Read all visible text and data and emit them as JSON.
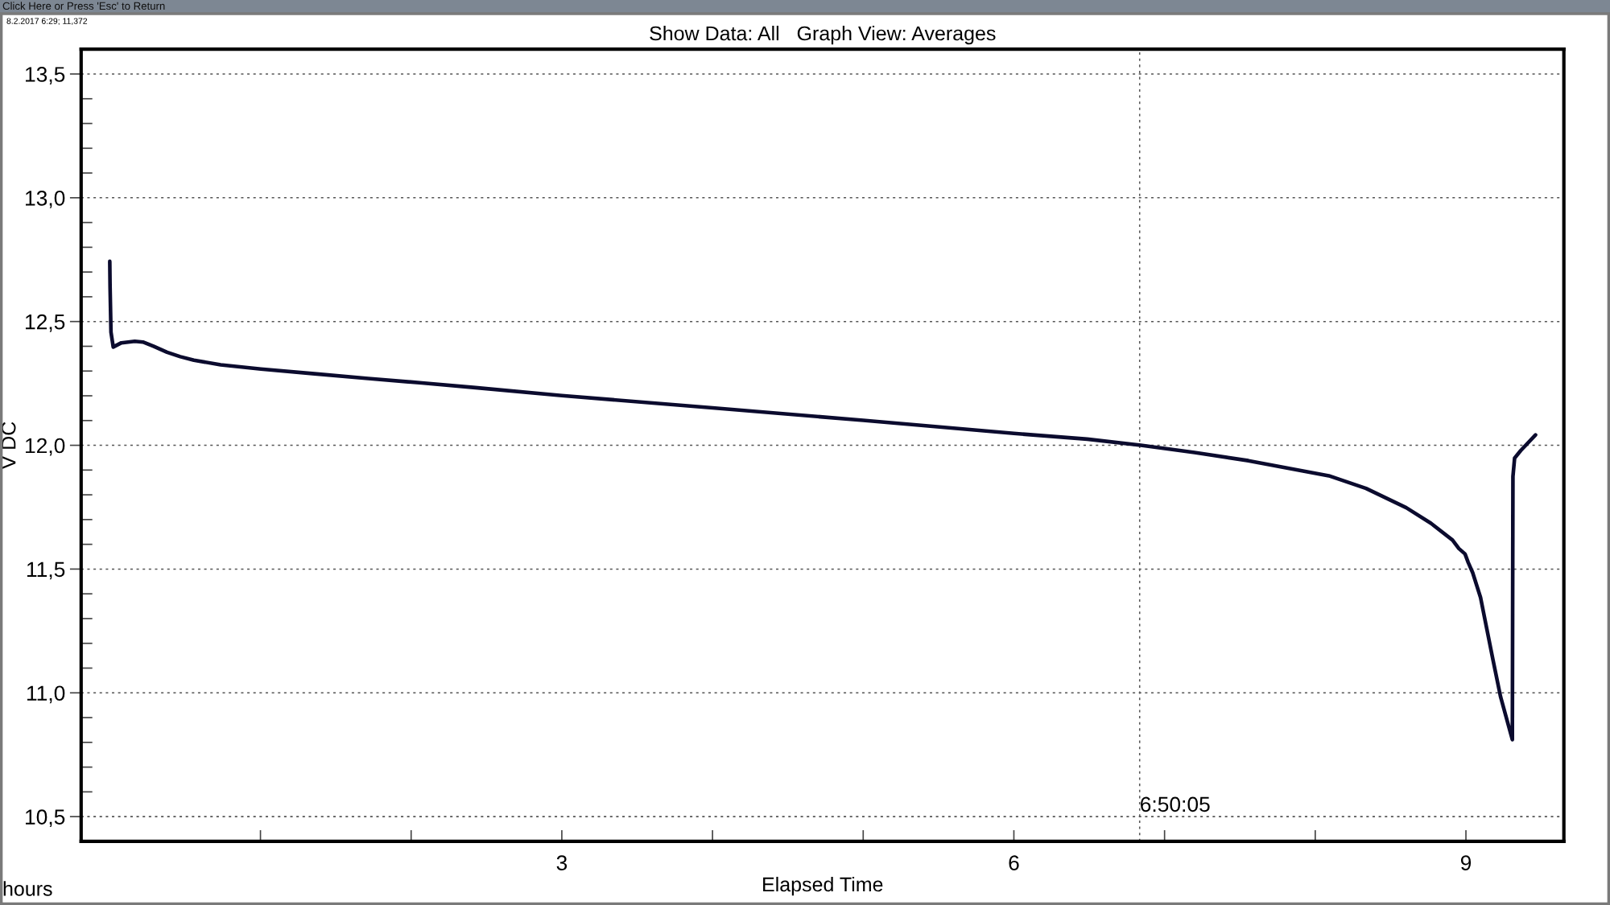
{
  "chart_data": {
    "type": "line",
    "title": "Show Data: All   Graph View: Averages",
    "xlabel": "Elapsed Time",
    "ylabel": "V DC",
    "annotations": [
      "Click Here or Press 'Esc' to Return",
      "8.2.2017 6:29; 11,372",
      "hours",
      {
        "text": "6:50:05",
        "x": 6.834722,
        "y": 10.52
      }
    ],
    "x": [
      0.0,
      0.002,
      0.008,
      0.023,
      0.077,
      0.166,
      0.22,
      0.29,
      0.38,
      0.468,
      0.558,
      0.736,
      1.003,
      1.359,
      1.715,
      2.071,
      2.427,
      3.0,
      4.0,
      5.0,
      6.0,
      6.487,
      6.843,
      7.199,
      7.556,
      7.912,
      8.09,
      8.337,
      8.604,
      8.768,
      8.911,
      8.953,
      8.994,
      9.015,
      9.045,
      9.097,
      9.138,
      9.179,
      9.23,
      9.308,
      9.312,
      9.323,
      9.364,
      9.462
    ],
    "series": [
      {
        "color": "#0b0b2e",
        "values": [
          12.743,
          12.64,
          12.457,
          12.397,
          12.414,
          12.42,
          12.417,
          12.4,
          12.376,
          12.358,
          12.344,
          12.325,
          12.308,
          12.289,
          12.27,
          12.252,
          12.233,
          12.201,
          12.151,
          12.101,
          12.048,
          12.025,
          12.0,
          11.971,
          11.938,
          11.897,
          11.877,
          11.826,
          11.748,
          11.685,
          11.617,
          11.583,
          11.561,
          11.527,
          11.485,
          11.385,
          11.26,
          11.135,
          10.984,
          10.811,
          11.874,
          11.948,
          11.979,
          12.042
        ]
      }
    ],
    "xlim": [
      -0.19,
      9.65
    ],
    "ylim": [
      10.4,
      13.6
    ],
    "xticks": [
      {
        "value": 1,
        "label": null
      },
      {
        "value": 2,
        "label": null
      },
      3,
      {
        "value": 4,
        "label": null
      },
      {
        "value": 5,
        "label": null
      },
      6,
      {
        "value": 7,
        "label": null
      },
      {
        "value": 8,
        "label": null
      },
      9
    ],
    "yticks": [
      {
        "value": 10.5,
        "label": "10,5"
      },
      {
        "value": 10.6,
        "label": null
      },
      {
        "value": 10.7,
        "label": null
      },
      {
        "value": 10.8,
        "label": null
      },
      {
        "value": 10.9,
        "label": null
      },
      {
        "value": 11.0,
        "label": "11,0"
      },
      {
        "value": 11.1,
        "label": null
      },
      {
        "value": 11.2,
        "label": null
      },
      {
        "value": 11.3,
        "label": null
      },
      {
        "value": 11.4,
        "label": null
      },
      {
        "value": 11.5,
        "label": "11,5"
      },
      {
        "value": 11.6,
        "label": null
      },
      {
        "value": 11.7,
        "label": null
      },
      {
        "value": 11.8,
        "label": null
      },
      {
        "value": 11.9,
        "label": null
      },
      {
        "value": 12.0,
        "label": "12,0"
      },
      {
        "value": 12.1,
        "label": null
      },
      {
        "value": 12.2,
        "label": null
      },
      {
        "value": 12.3,
        "label": null
      },
      {
        "value": 12.4,
        "label": null
      },
      {
        "value": 12.5,
        "label": "12,5"
      },
      {
        "value": 12.6,
        "label": null
      },
      {
        "value": 12.7,
        "label": null
      },
      {
        "value": 12.8,
        "label": null
      },
      {
        "value": 12.9,
        "label": null
      },
      {
        "value": 13.0,
        "label": "13,0"
      },
      {
        "value": 13.1,
        "label": null
      },
      {
        "value": 13.2,
        "label": null
      },
      {
        "value": 13.3,
        "label": null
      },
      {
        "value": 13.4,
        "label": null
      },
      {
        "value": 13.5,
        "label": "13,5"
      }
    ],
    "grid": "y",
    "line_style": "solid",
    "ref_lines": [
      {
        "axis": "x",
        "value": 6.834722,
        "color": "#555555",
        "line_style": "dotted"
      }
    ]
  }
}
